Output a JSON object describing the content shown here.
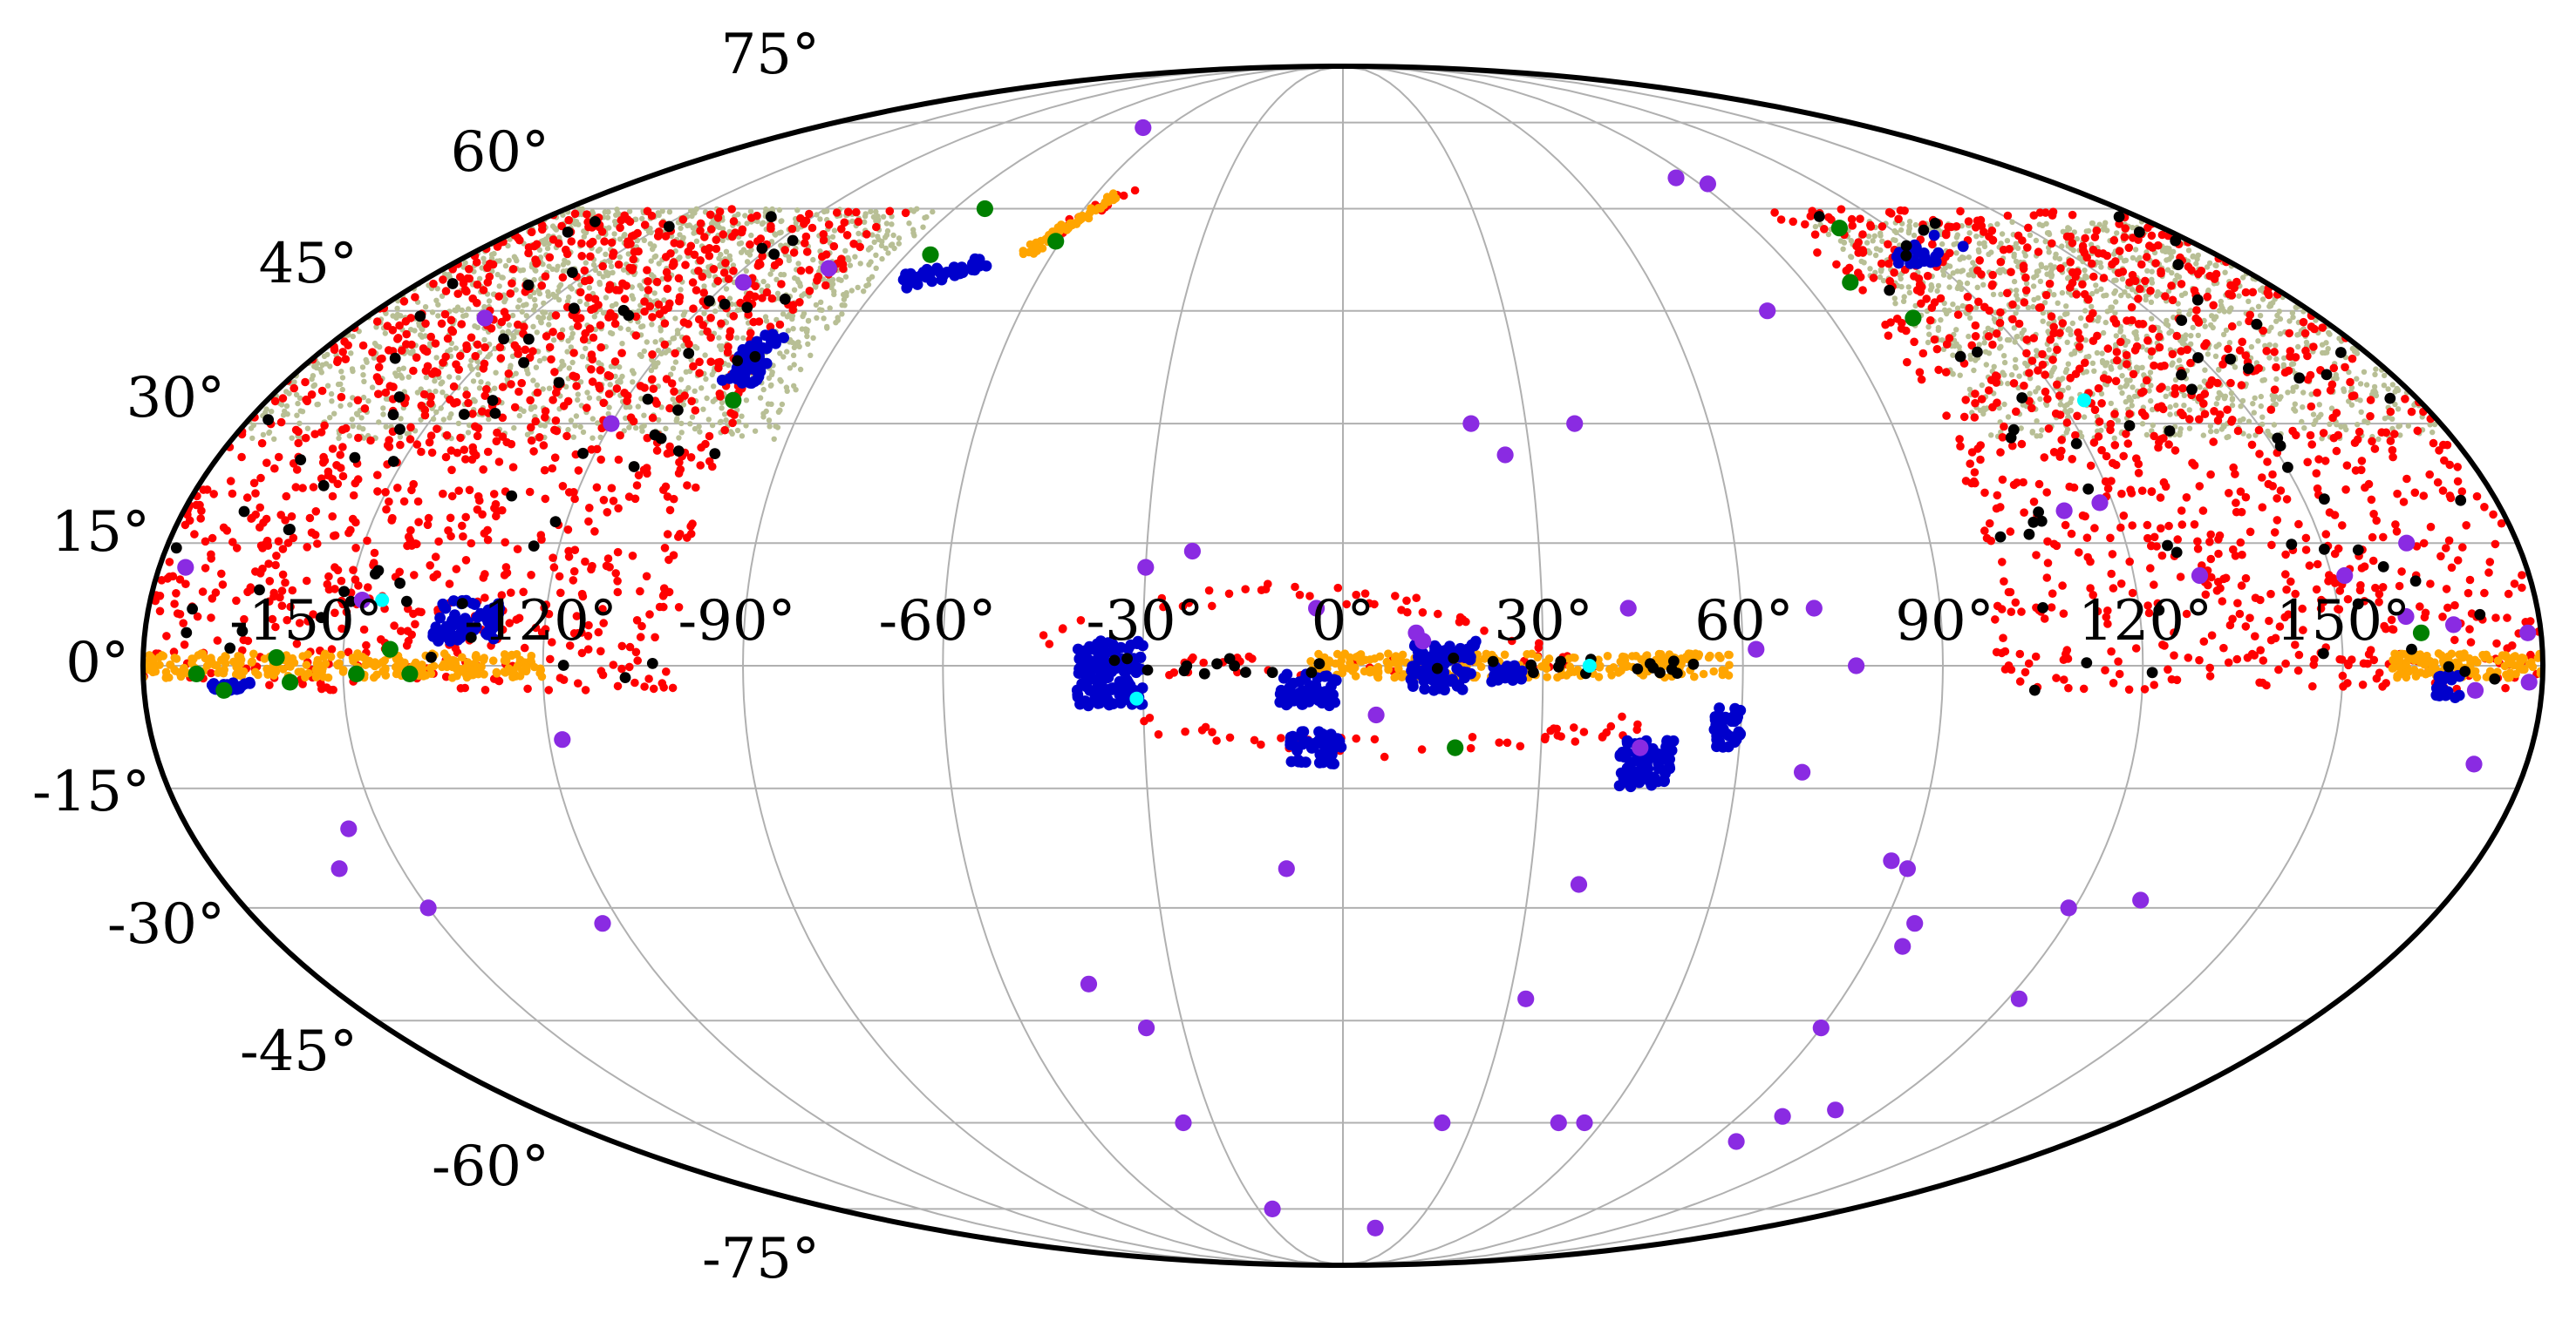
{
  "chart_data": {
    "type": "scatter",
    "projection": "mollweide",
    "grid": true,
    "lon_ticks": [
      -150,
      -120,
      -90,
      -60,
      -30,
      0,
      30,
      60,
      90,
      120,
      150
    ],
    "lat_ticks": [
      -75,
      -60,
      -45,
      -30,
      -15,
      0,
      15,
      30,
      45,
      60,
      75
    ],
    "lon_tick_labels": [
      "-150°",
      "-120°",
      "-90°",
      "-60°",
      "-30°",
      "0°",
      "30°",
      "60°",
      "90°",
      "120°",
      "150°"
    ],
    "lat_tick_labels": [
      "-75°",
      "-60°",
      "-45°",
      "-30°",
      "-15°",
      "0°",
      "15°",
      "30°",
      "45°",
      "60°",
      "75°"
    ],
    "series": [
      {
        "name": "beige survey field",
        "color": "#b8bf95",
        "marker_size": 2,
        "regions": [
          {
            "lon": [
              -180,
              -92
            ],
            "lat": [
              28,
              60
            ],
            "count": 1400
          },
          {
            "lon": [
              104,
              180
            ],
            "lat": [
              28,
              58
            ],
            "count": 1200
          }
        ]
      },
      {
        "name": "red",
        "color": "#ff0000",
        "marker_size": 3,
        "regions": [
          {
            "lon": [
              -180,
              -100
            ],
            "lat": [
              -3,
              60
            ],
            "count": 1100
          },
          {
            "lon": [
              98,
              180
            ],
            "lat": [
              -3,
              60
            ],
            "count": 950
          }
        ],
        "arcs": [
          {
            "lon": [
              -45,
              30
            ],
            "lat_center": 3,
            "lat_amplitude": 6,
            "count": 40
          },
          {
            "lon": [
              -30,
              45
            ],
            "lat_center": -7,
            "lat_amplitude": -3,
            "count": 45
          },
          {
            "lon": [
              -30,
              40
            ],
            "lat_center": 0,
            "lat_amplitude": 0,
            "count": 40
          }
        ],
        "streaks": [
          {
            "lon": [
              -62,
              -52
            ],
            "lat": [
              57,
              63
            ],
            "count": 18
          }
        ]
      },
      {
        "name": "orange",
        "color": "#ffa500",
        "marker_size": 3,
        "bands": [
          {
            "lon": [
              -180,
              -120
            ],
            "lat": [
              -1.5,
              1.5
            ],
            "count": 260
          },
          {
            "lon": [
              -5,
              58
            ],
            "lat": [
              -1.5,
              1.5
            ],
            "count": 260
          },
          {
            "lon": [
              157,
              180
            ],
            "lat": [
              -1.5,
              1.5
            ],
            "count": 140
          }
        ],
        "streaks": [
          {
            "lon": [
              -66,
              -55
            ],
            "lat": [
              53,
              62
            ],
            "count": 70
          }
        ]
      },
      {
        "name": "blue",
        "color": "#0000cc",
        "marker_size": 4,
        "regions": [
          {
            "lon": [
              -40,
              -30
            ],
            "lat": [
              -5,
              3
            ],
            "count": 140
          },
          {
            "lon": [
              -10,
              -1
            ],
            "lat": [
              -5,
              -1
            ],
            "count": 50
          },
          {
            "lon": [
              -8,
              0
            ],
            "lat": [
              -12,
              -8
            ],
            "count": 50
          },
          {
            "lon": [
              10,
              20
            ],
            "lat": [
              -3,
              3
            ],
            "count": 80
          },
          {
            "lon": [
              22,
              27
            ],
            "lat": [
              -2,
              0
            ],
            "count": 30
          },
          {
            "lon": [
              42,
              50
            ],
            "lat": [
              -15,
              -9
            ],
            "count": 80
          },
          {
            "lon": [
              56,
              60
            ],
            "lat": [
              -10,
              -5
            ],
            "count": 40
          },
          {
            "lon": [
              -137,
              -127
            ],
            "lat": [
              3,
              8
            ],
            "count": 70
          },
          {
            "lon": [
              -106,
              -100
            ],
            "lat": [
              35,
              42
            ],
            "count": 60
          },
          {
            "lon": [
              -170,
              -164
            ],
            "lat": [
              -3,
              -2
            ],
            "count": 20
          },
          {
            "lon": [
              164,
              168
            ],
            "lat": [
              -4,
              -1
            ],
            "count": 20
          }
        ],
        "streaks": [
          {
            "lon": [
              -86,
              -72
            ],
            "lat": [
              49,
              52
            ],
            "count": 40
          },
          {
            "lon": [
              113,
              130
            ],
            "lat": [
              52,
              55
            ],
            "count": 25
          }
        ]
      },
      {
        "name": "black",
        "color": "#000000",
        "marker_size": 4,
        "regions": [
          {
            "lon": [
              -180,
              -100
            ],
            "lat": [
              -3,
              60
            ],
            "count": 70
          },
          {
            "lon": [
              98,
              180
            ],
            "lat": [
              -3,
              60
            ],
            "count": 60
          }
        ],
        "bands": [
          {
            "lon": [
              -35,
              55
            ],
            "lat": [
              -1,
              1
            ],
            "count": 30
          }
        ]
      },
      {
        "name": "purple",
        "color": "#8a2be2",
        "marker_size": 6,
        "points": [
          [
            -68,
            74
          ],
          [
            -103,
            51
          ],
          [
            -117,
            49
          ],
          [
            -158,
            44
          ],
          [
            -120,
            30
          ],
          [
            -176,
            12
          ],
          [
            -148,
            8
          ],
          [
            -118,
            -9
          ],
          [
            -155,
            -20
          ],
          [
            -160,
            -25
          ],
          [
            -150,
            -30
          ],
          [
            -123,
            -32
          ],
          [
            -45,
            -40
          ],
          [
            -37,
            -46
          ],
          [
            -37,
            -60
          ],
          [
            -25,
            -75
          ],
          [
            -9,
            -25
          ],
          [
            -30,
            12
          ],
          [
            -23,
            14
          ],
          [
            -4,
            7
          ],
          [
            5,
            -6
          ],
          [
            11,
            4
          ],
          [
            12,
            3
          ],
          [
            21,
            30
          ],
          [
            26,
            26
          ],
          [
            38,
            30
          ],
          [
            38,
            -27
          ],
          [
            43,
            7
          ],
          [
            45,
            -10
          ],
          [
            23,
            -60
          ],
          [
            33,
            -42
          ],
          [
            50,
            -60
          ],
          [
            56,
            -60
          ],
          [
            62,
            2
          ],
          [
            70,
            -13
          ],
          [
            71,
            7
          ],
          [
            77,
            0
          ],
          [
            79,
            45
          ],
          [
            86,
            65
          ],
          [
            92,
            64
          ],
          [
            87,
            -24
          ],
          [
            90,
            -25
          ],
          [
            95,
            -32
          ],
          [
            95,
            -35
          ],
          [
            90,
            -46
          ],
          [
            100,
            -59
          ],
          [
            97,
            -63
          ],
          [
            110,
            -58
          ],
          [
            119,
            -30
          ],
          [
            130,
            -29
          ],
          [
            122,
            -42
          ],
          [
            14,
            -79
          ],
          [
            118,
            20
          ],
          [
            112,
            19
          ],
          [
            130,
            11
          ],
          [
            152,
            11
          ],
          [
            167,
            5
          ],
          [
            178,
            4
          ],
          [
            170,
            -3
          ],
          [
            172,
            -12
          ],
          [
            178,
            -2
          ],
          [
            163,
            15
          ],
          [
            160,
            6
          ]
        ]
      },
      {
        "name": "green",
        "color": "#008000",
        "marker_size": 6,
        "points": [
          [
            -172,
            -1
          ],
          [
            -168,
            -3
          ],
          [
            -160,
            1
          ],
          [
            -158,
            -2
          ],
          [
            -148,
            -1
          ],
          [
            -143,
            2
          ],
          [
            -140,
            -1
          ],
          [
            -83,
            60
          ],
          [
            -85,
            53
          ],
          [
            -102,
            33
          ],
          [
            -61,
            55
          ],
          [
            17,
            -10
          ],
          [
            109,
            57
          ],
          [
            99,
            49
          ],
          [
            105,
            44
          ],
          [
            162,
            4
          ]
        ]
      },
      {
        "name": "cyan",
        "color": "#00ffff",
        "marker_size": 5,
        "points": [
          [
            -145,
            8
          ],
          [
            -31,
            -4
          ],
          [
            37,
            0
          ],
          [
            124,
            33
          ]
        ]
      }
    ]
  }
}
